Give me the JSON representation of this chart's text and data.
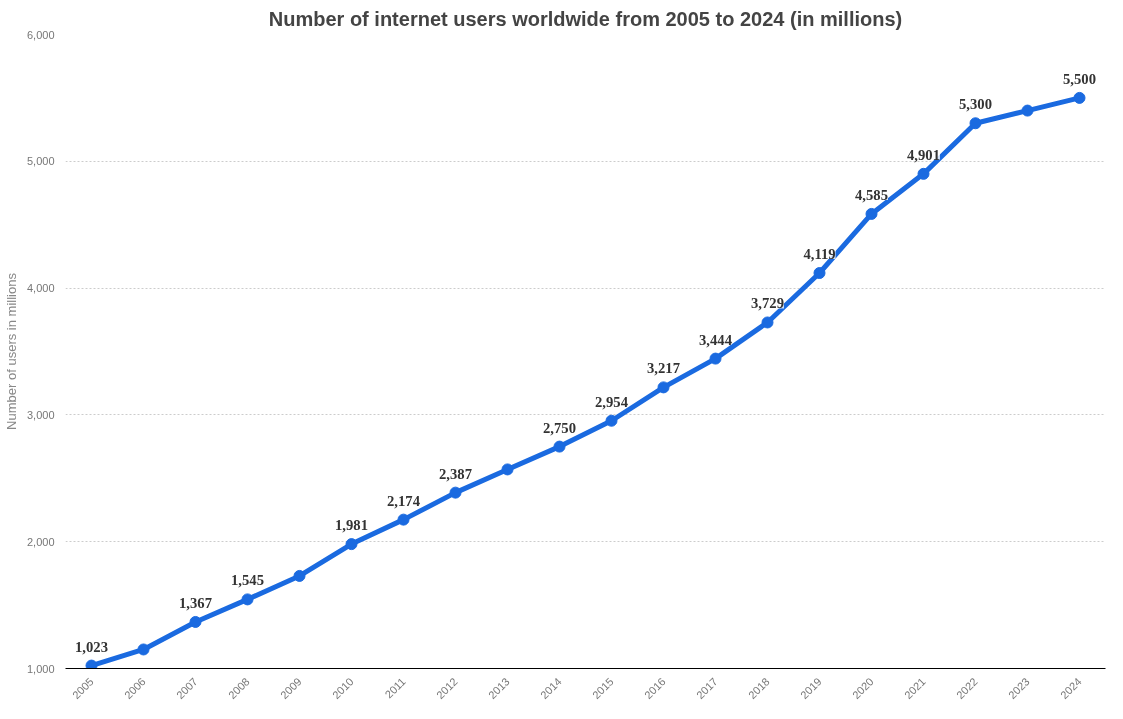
{
  "chart_data": {
    "type": "line",
    "title": "Number of internet users worldwide from 2005 to 2024 (in millions)",
    "ylabel": "Number of users in millions",
    "categories": [
      "2005",
      "2006",
      "2007",
      "2008",
      "2009",
      "2010",
      "2011",
      "2012",
      "2013",
      "2014",
      "2015",
      "2016",
      "2017",
      "2018",
      "2019",
      "2020",
      "2021",
      "2022",
      "2023",
      "2024"
    ],
    "series": [
      {
        "color": "#1a6ae0",
        "values": [
          1023,
          1150,
          1367,
          1545,
          1730,
          1981,
          2174,
          2387,
          2570,
          2750,
          2954,
          3217,
          3444,
          3729,
          4119,
          4585,
          4901,
          5300,
          5400,
          5500
        ],
        "value_labels": [
          "1,023",
          null,
          "1,367",
          "1,545",
          null,
          "1,981",
          "2,174",
          "2,387",
          null,
          "2,750",
          "2,954",
          "3,217",
          "3,444",
          "3,729",
          "4,119",
          "4,585",
          "4,901",
          "5,300",
          null,
          "5,500"
        ]
      }
    ],
    "ylim": [
      1000,
      6000
    ],
    "yticks": [
      {
        "value": 1000,
        "label": "1,000"
      },
      {
        "value": 2000,
        "label": "2,000"
      },
      {
        "value": 3000,
        "label": "3,000"
      },
      {
        "value": 4000,
        "label": "4,000"
      },
      {
        "value": 5000,
        "label": "5,000"
      },
      {
        "value": 6000,
        "label": "6,000"
      }
    ],
    "grid": "y",
    "marker": "circle",
    "line_style": "solid"
  }
}
